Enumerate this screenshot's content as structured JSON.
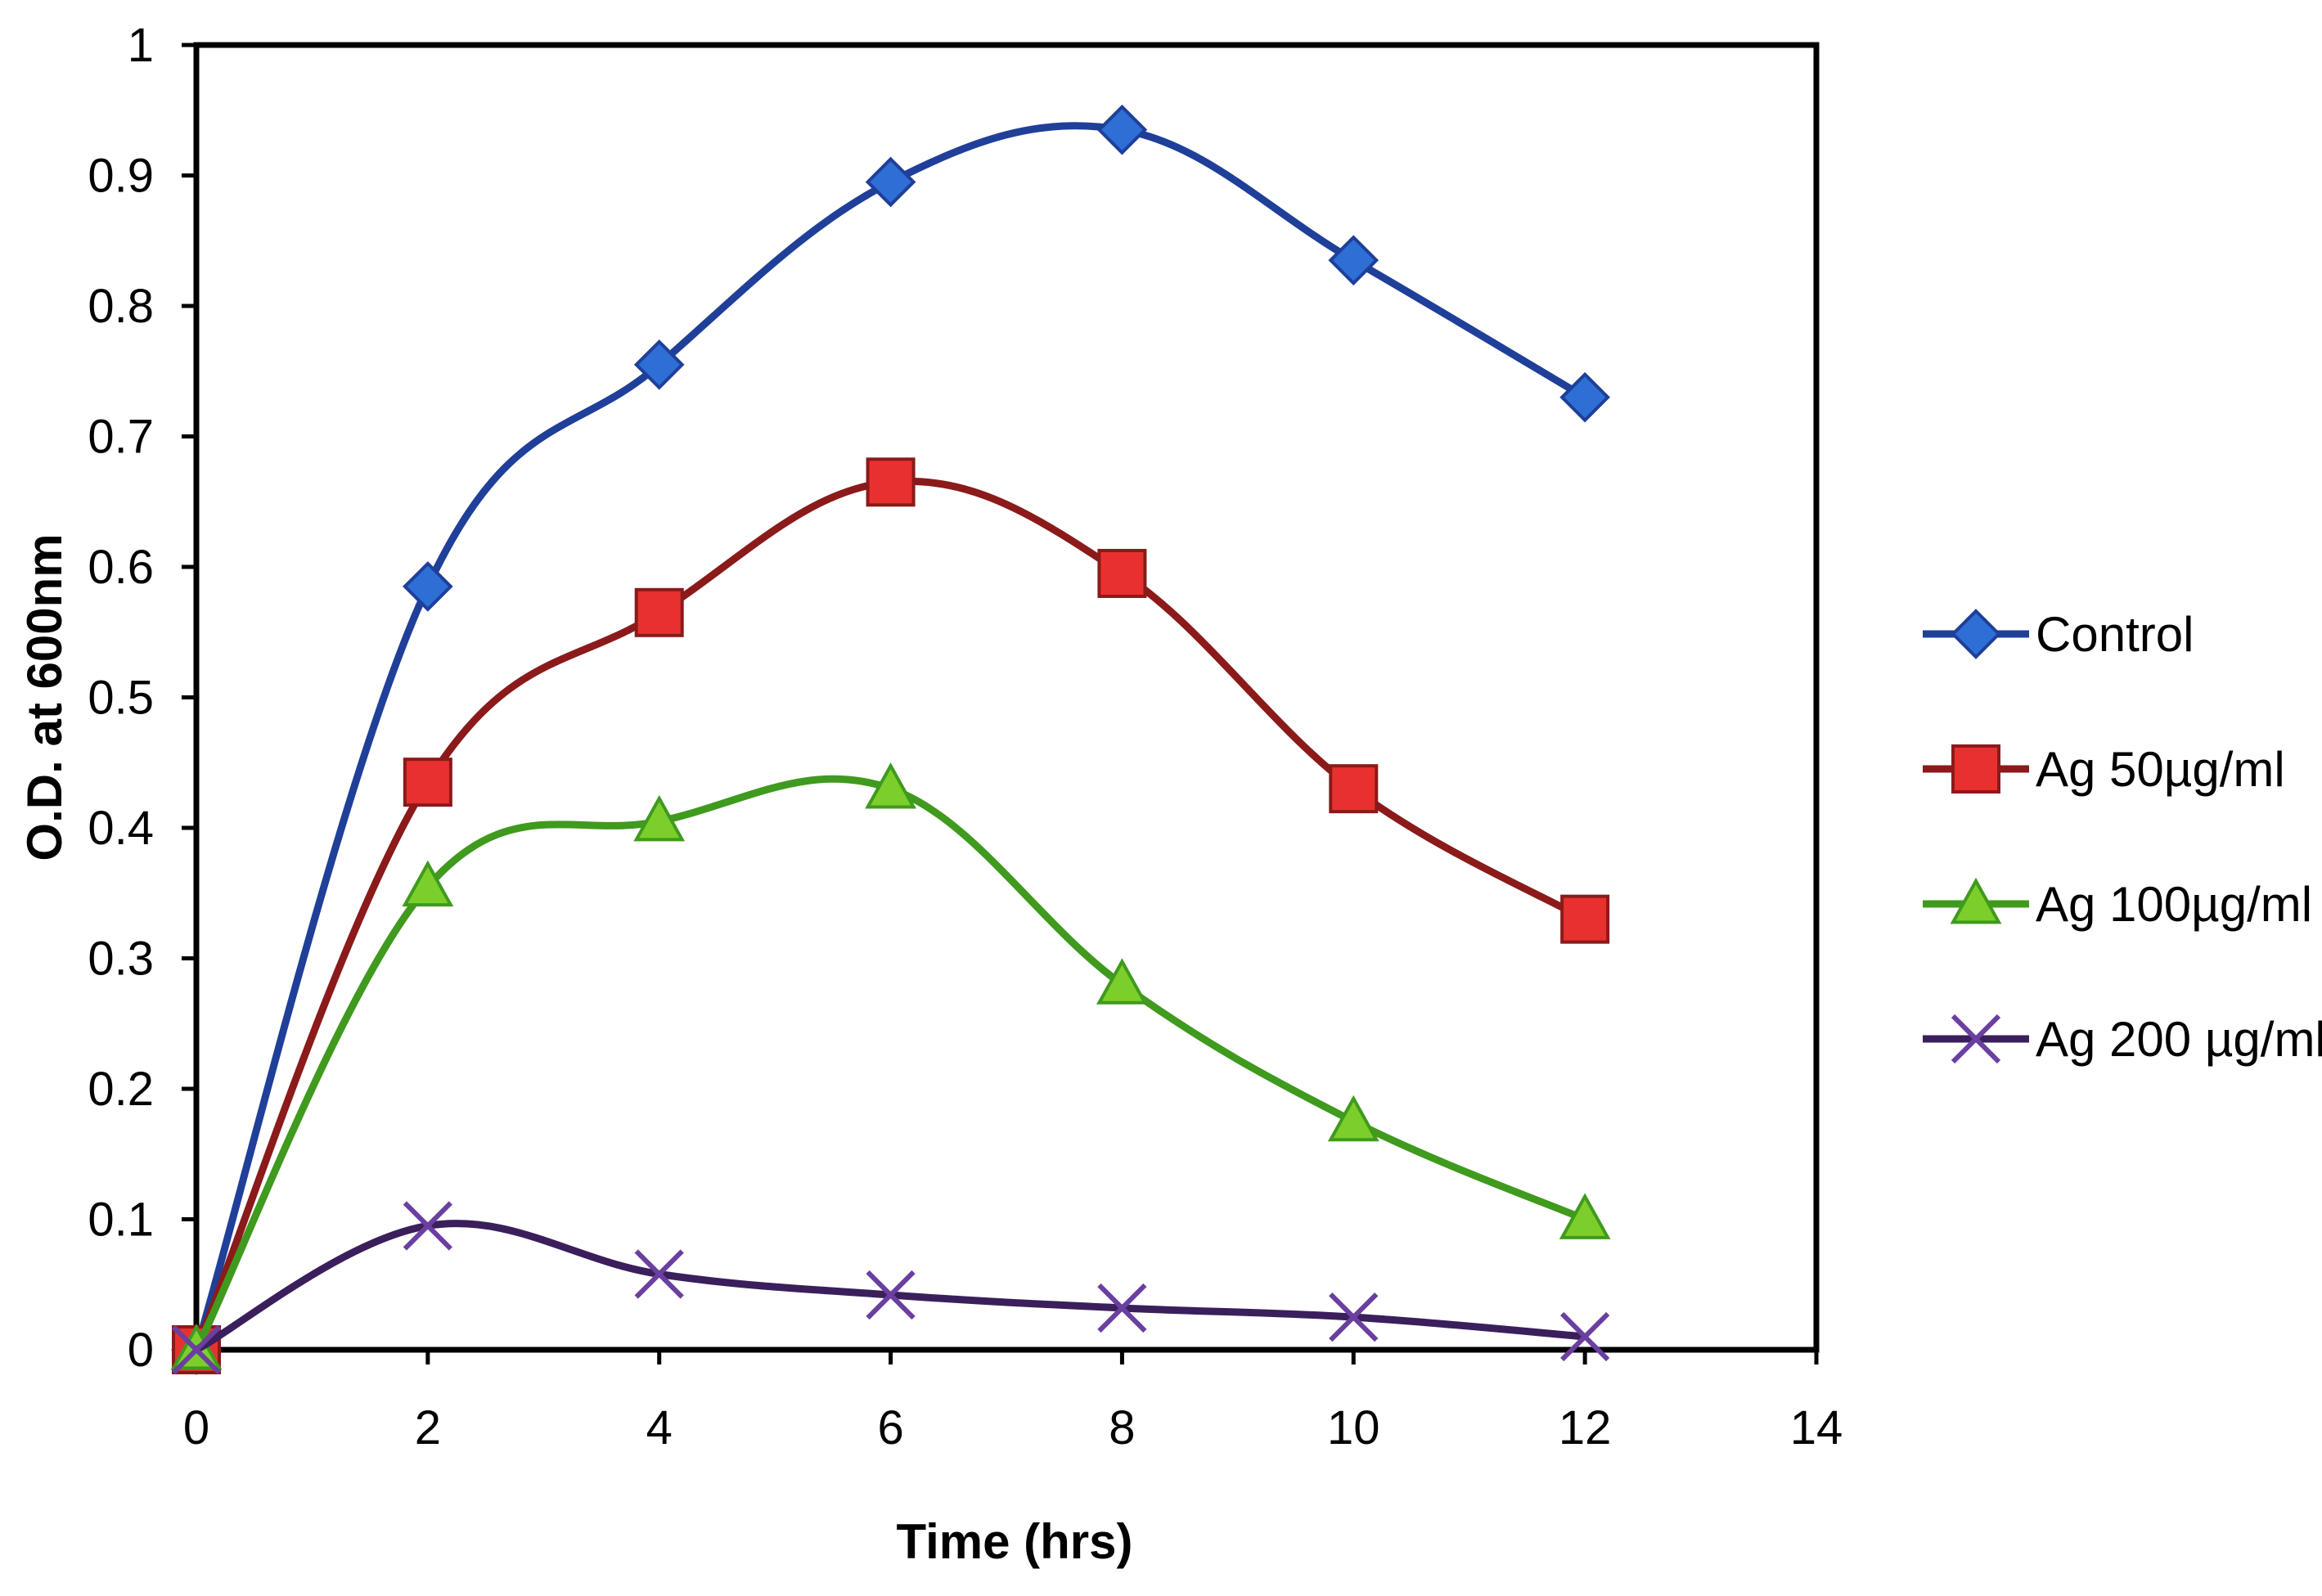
{
  "chart_data": {
    "type": "line",
    "title": "",
    "xlabel": "Time (hrs)",
    "ylabel": "O.D. at 600nm",
    "xlim": [
      0,
      14
    ],
    "ylim": [
      0,
      1
    ],
    "x_ticks": [
      "0",
      "2",
      "4",
      "6",
      "8",
      "10",
      "12",
      "14"
    ],
    "y_ticks": [
      "0",
      "0.1",
      "0.2",
      "0.3",
      "0.4",
      "0.5",
      "0.6",
      "0.7",
      "0.8",
      "0.9",
      "1"
    ],
    "grid": false,
    "smoothed": true,
    "legend_position": "right",
    "x": [
      0,
      2,
      4,
      6,
      8,
      10,
      12
    ],
    "series": [
      {
        "name": "Control",
        "values": [
          0,
          0.585,
          0.755,
          0.895,
          0.935,
          0.835,
          0.73
        ],
        "color": "#1f3f99",
        "marker": "diamond",
        "marker_color": "#2e6fd6"
      },
      {
        "name": "Ag 50µg/ml",
        "values": [
          0,
          0.435,
          0.565,
          0.665,
          0.595,
          0.43,
          0.33
        ],
        "color": "#8b1a1a",
        "marker": "square",
        "marker_color": "#e8312f"
      },
      {
        "name": "Ag 100µg/ml",
        "values": [
          0,
          0.355,
          0.405,
          0.43,
          0.28,
          0.175,
          0.1
        ],
        "color": "#3f9a1e",
        "marker": "triangle",
        "marker_color": "#7ccf2a"
      },
      {
        "name": "Ag 200 µg/ml",
        "values": [
          0,
          0.095,
          0.058,
          0.042,
          0.032,
          0.025,
          0.01
        ],
        "color": "#3a1f5c",
        "marker": "x",
        "marker_color": "#6a3fa0"
      }
    ]
  }
}
